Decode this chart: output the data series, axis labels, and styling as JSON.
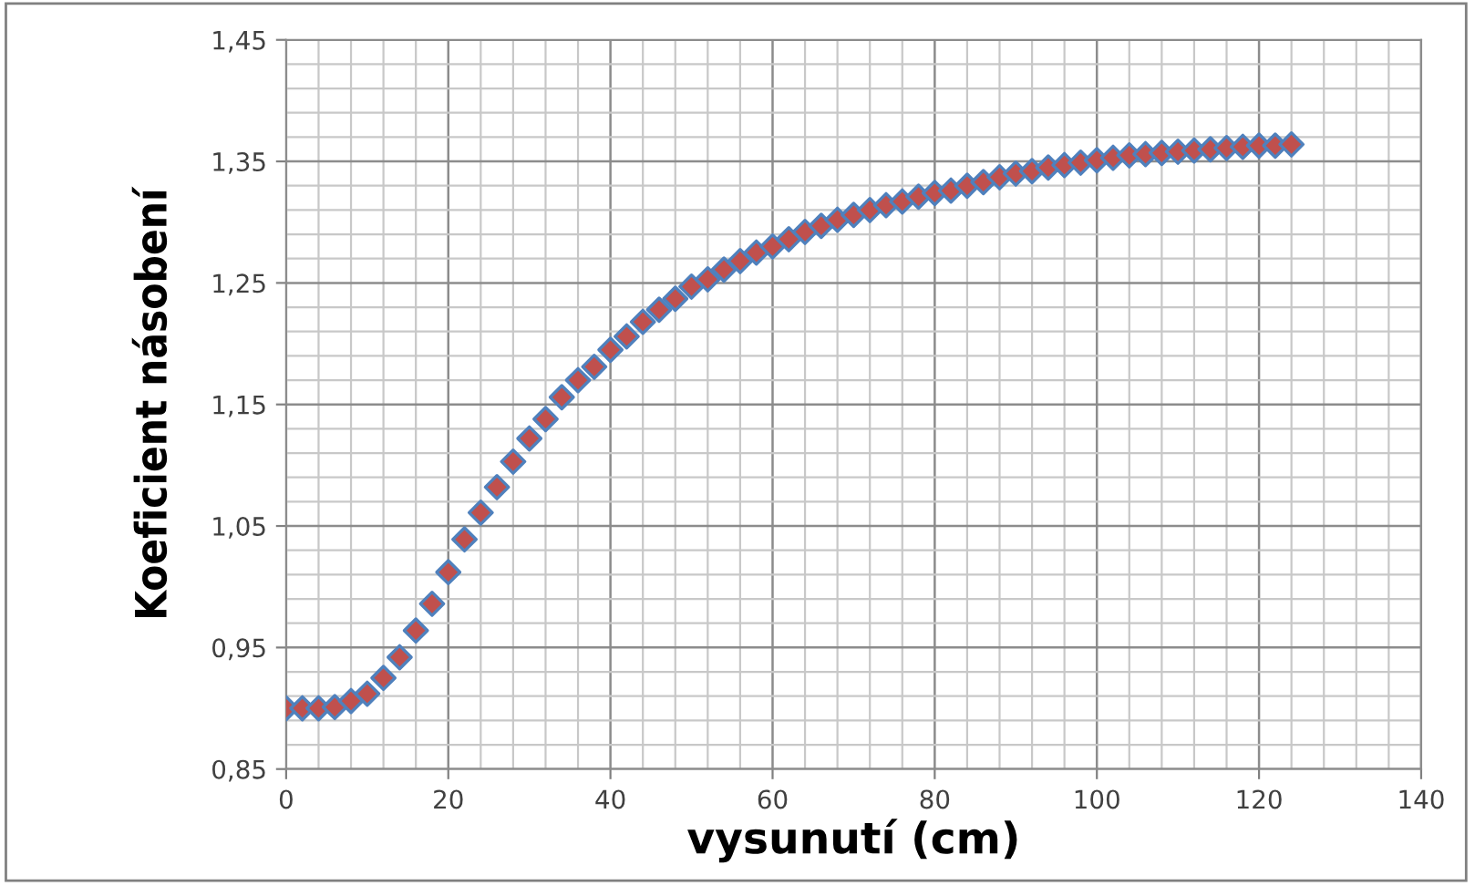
{
  "chart_data": {
    "type": "scatter",
    "xlabel": "vysunutí (cm)",
    "ylabel": "Koeficient násobení",
    "x": [
      0,
      2,
      4,
      6,
      8,
      10,
      12,
      14,
      16,
      18,
      20,
      22,
      24,
      26,
      28,
      30,
      32,
      34,
      36,
      38,
      40,
      42,
      44,
      46,
      48,
      50,
      52,
      54,
      56,
      58,
      60,
      62,
      64,
      66,
      68,
      70,
      72,
      74,
      76,
      78,
      80,
      82,
      84,
      86,
      88,
      90,
      92,
      94,
      96,
      98,
      100,
      102,
      104,
      106,
      108,
      110,
      112,
      114,
      116,
      118,
      120,
      122,
      124
    ],
    "series": [
      {
        "color": "#c0504d",
        "values": [
          0.9,
          0.9,
          0.9,
          0.901,
          0.906,
          0.912,
          0.925,
          0.942,
          0.964,
          0.986,
          1.012,
          1.039,
          1.061,
          1.082,
          1.103,
          1.122,
          1.138,
          1.156,
          1.17,
          1.181,
          1.195,
          1.206,
          1.218,
          1.228,
          1.237,
          1.247,
          1.253,
          1.261,
          1.268,
          1.275,
          1.28,
          1.286,
          1.292,
          1.297,
          1.302,
          1.306,
          1.31,
          1.314,
          1.317,
          1.321,
          1.324,
          1.326,
          1.33,
          1.333,
          1.337,
          1.34,
          1.342,
          1.345,
          1.347,
          1.349,
          1.351,
          1.353,
          1.355,
          1.356,
          1.357,
          1.358,
          1.359,
          1.36,
          1.361,
          1.362,
          1.363,
          1.363,
          1.364
        ]
      }
    ],
    "xlim": [
      0,
      140
    ],
    "xticks": [
      0,
      20,
      40,
      60,
      80,
      100,
      120,
      140
    ],
    "ylim": [
      0.85,
      1.45
    ],
    "yticks": [
      {
        "value": 0.85,
        "label": "0,85"
      },
      {
        "value": 0.95,
        "label": "0,95"
      },
      {
        "value": 1.05,
        "label": "1,05"
      },
      {
        "value": 1.15,
        "label": "1,15"
      },
      {
        "value": 1.25,
        "label": "1,25"
      },
      {
        "value": 1.35,
        "label": "1,35"
      },
      {
        "value": 1.45,
        "label": "1,45"
      }
    ],
    "grid": true,
    "marker": "diamond",
    "legend": false
  }
}
